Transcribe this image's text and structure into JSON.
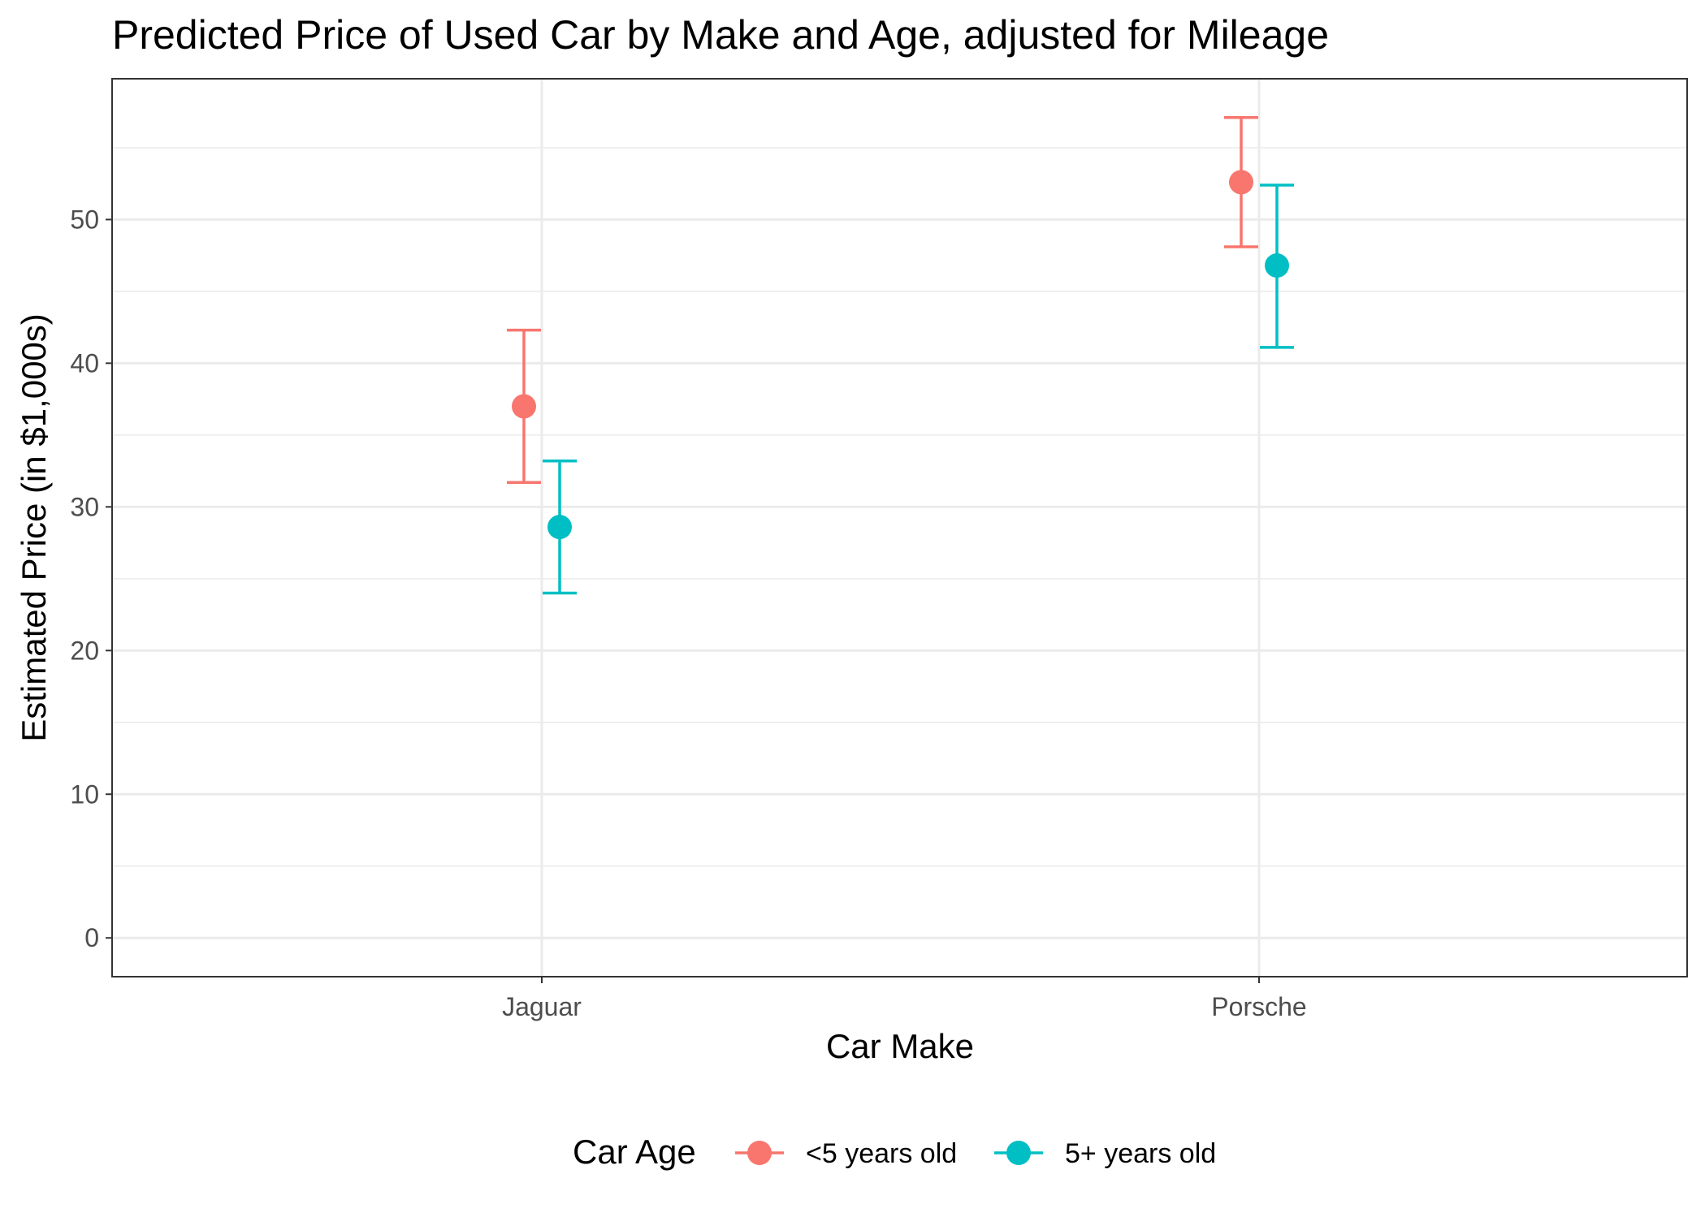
{
  "chart_data": {
    "type": "scatter",
    "subtype": "point-with-errorbars (dodged)",
    "title": "Predicted Price of Used Car by Make and Age, adjusted for Mileage",
    "xlabel": "Car Make",
    "ylabel": "Estimated Price (in $1,000s)",
    "categories": [
      "Jaguar",
      "Porsche"
    ],
    "ylim": [
      -2.7,
      59.8
    ],
    "y_ticks": [
      0,
      10,
      20,
      30,
      40,
      50
    ],
    "grid": true,
    "legend": {
      "title": "Car Age",
      "position": "bottom"
    },
    "series": [
      {
        "name": "<5 years old",
        "color": "#F8766D",
        "points": [
          {
            "category": "Jaguar",
            "estimate": 37.0,
            "lower": 31.7,
            "upper": 42.3
          },
          {
            "category": "Porsche",
            "estimate": 52.6,
            "lower": 48.1,
            "upper": 57.1
          }
        ]
      },
      {
        "name": "5+ years old",
        "color": "#00BFC4",
        "points": [
          {
            "category": "Jaguar",
            "estimate": 28.6,
            "lower": 24.0,
            "upper": 33.2
          },
          {
            "category": "Porsche",
            "estimate": 46.8,
            "lower": 41.1,
            "upper": 52.4
          }
        ]
      }
    ]
  }
}
